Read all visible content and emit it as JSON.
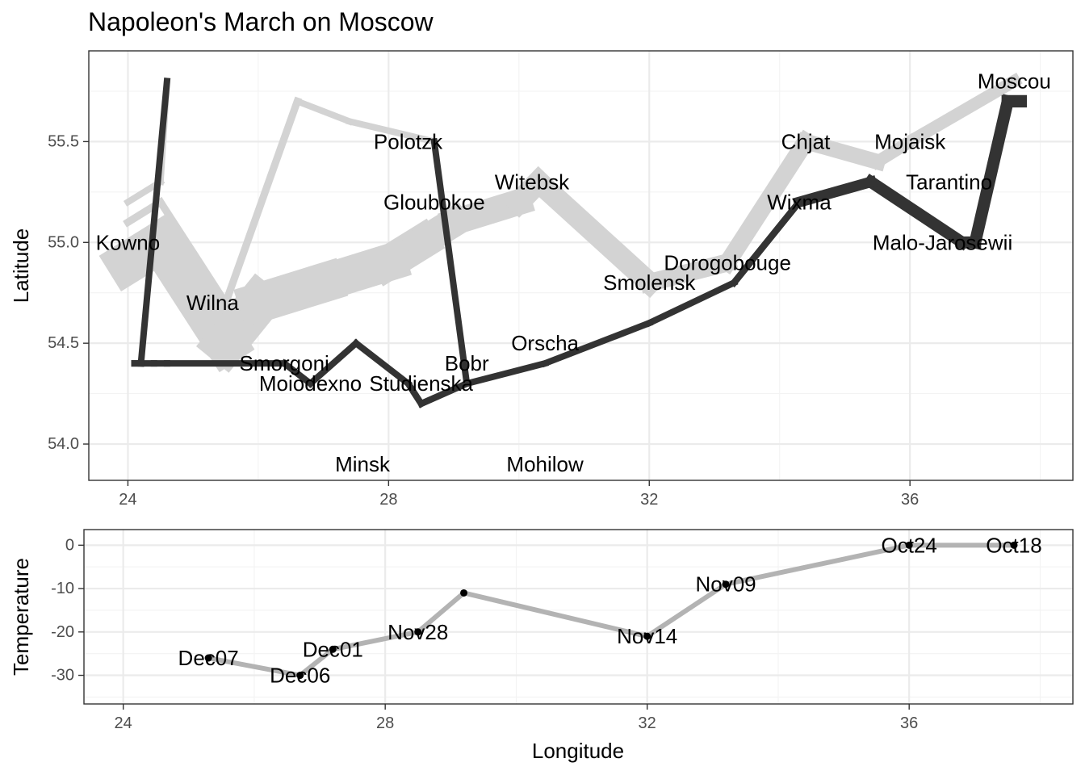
{
  "chart_data": [
    {
      "type": "path-map",
      "title": "Napoleon's March on Moscow",
      "xlabel": "",
      "ylabel": "Latitude",
      "xlim": [
        23.4,
        38.5
      ],
      "ylim": [
        53.82,
        55.95
      ],
      "xticks": [
        24,
        28,
        32,
        36
      ],
      "yticks": [
        54.0,
        54.5,
        55.0,
        55.5
      ],
      "ytick_labels": [
        "54.0",
        "54.5",
        "55.0",
        "55.5"
      ],
      "grid": true,
      "colors": {
        "advance": "#d3d3d3",
        "retreat": "#333333"
      },
      "series": [
        {
          "direction": "advance",
          "group": 1,
          "points": [
            {
              "lon": 24.0,
              "lat": 54.9,
              "survivors": 340000
            },
            {
              "lon": 24.5,
              "lat": 55.0,
              "survivors": 340000
            },
            {
              "lon": 25.5,
              "lat": 54.5,
              "survivors": 340000
            },
            {
              "lon": 26.0,
              "lat": 54.7,
              "survivors": 320000
            },
            {
              "lon": 27.0,
              "lat": 54.8,
              "survivors": 300000
            },
            {
              "lon": 28.0,
              "lat": 54.9,
              "survivors": 280000
            },
            {
              "lon": 28.5,
              "lat": 55.0,
              "survivors": 240000
            },
            {
              "lon": 29.0,
              "lat": 55.1,
              "survivors": 210000
            },
            {
              "lon": 30.0,
              "lat": 55.2,
              "survivors": 180000
            },
            {
              "lon": 30.3,
              "lat": 55.3,
              "survivors": 175000
            },
            {
              "lon": 32.0,
              "lat": 54.8,
              "survivors": 145000
            },
            {
              "lon": 33.2,
              "lat": 54.9,
              "survivors": 140000
            },
            {
              "lon": 34.4,
              "lat": 55.5,
              "survivors": 127100
            },
            {
              "lon": 35.5,
              "lat": 55.4,
              "survivors": 100000
            },
            {
              "lon": 36.0,
              "lat": 55.5,
              "survivors": 100000
            },
            {
              "lon": 37.6,
              "lat": 55.8,
              "survivors": 100000
            }
          ]
        },
        {
          "direction": "retreat",
          "group": 1,
          "points": [
            {
              "lon": 37.7,
              "lat": 55.7,
              "survivors": 100000
            },
            {
              "lon": 37.5,
              "lat": 55.7,
              "survivors": 98000
            },
            {
              "lon": 37.0,
              "lat": 55.0,
              "survivors": 97000
            },
            {
              "lon": 36.8,
              "lat": 55.0,
              "survivors": 96000
            },
            {
              "lon": 35.4,
              "lat": 55.3,
              "survivors": 87000
            },
            {
              "lon": 34.3,
              "lat": 55.2,
              "survivors": 55000
            },
            {
              "lon": 33.3,
              "lat": 54.8,
              "survivors": 37000
            },
            {
              "lon": 32.0,
              "lat": 54.6,
              "survivors": 24000
            },
            {
              "lon": 30.4,
              "lat": 54.4,
              "survivors": 20000
            },
            {
              "lon": 29.2,
              "lat": 54.3,
              "survivors": 20000
            },
            {
              "lon": 28.5,
              "lat": 54.2,
              "survivors": 20000
            },
            {
              "lon": 28.3,
              "lat": 54.3,
              "survivors": 20000
            },
            {
              "lon": 27.5,
              "lat": 54.5,
              "survivors": 20000
            },
            {
              "lon": 26.8,
              "lat": 54.3,
              "survivors": 12000
            },
            {
              "lon": 26.4,
              "lat": 54.4,
              "survivors": 14000
            },
            {
              "lon": 24.6,
              "lat": 54.4,
              "survivors": 8000
            },
            {
              "lon": 24.4,
              "lat": 54.4,
              "survivors": 4000
            },
            {
              "lon": 24.2,
              "lat": 54.4,
              "survivors": 4000
            },
            {
              "lon": 24.1,
              "lat": 54.4,
              "survivors": 4000
            }
          ]
        },
        {
          "direction": "advance",
          "group": 2,
          "points": [
            {
              "lon": 24.0,
              "lat": 55.1,
              "survivors": 60000
            },
            {
              "lon": 24.5,
              "lat": 55.2,
              "survivors": 60000
            },
            {
              "lon": 25.5,
              "lat": 54.7,
              "survivors": 60000
            },
            {
              "lon": 26.6,
              "lat": 55.7,
              "survivors": 40000
            },
            {
              "lon": 27.4,
              "lat": 55.6,
              "survivors": 33000
            }
          ]
        },
        {
          "direction": "advance",
          "group": 2,
          "points": [
            {
              "lon": 27.4,
              "lat": 55.6,
              "survivors": 33000
            },
            {
              "lon": 28.7,
              "lat": 55.5,
              "survivors": 33000
            }
          ]
        },
        {
          "direction": "retreat",
          "group": 2,
          "points": [
            {
              "lon": 28.7,
              "lat": 55.5,
              "survivors": 33000
            },
            {
              "lon": 29.2,
              "lat": 54.3,
              "survivors": 30000
            },
            {
              "lon": 28.5,
              "lat": 54.2,
              "survivors": 30000
            },
            {
              "lon": 28.3,
              "lat": 54.3,
              "survivors": 28000
            }
          ]
        },
        {
          "direction": "advance",
          "group": 3,
          "points": [
            {
              "lon": 24.0,
              "lat": 55.2,
              "survivors": 22000
            },
            {
              "lon": 24.5,
              "lat": 55.3,
              "survivors": 22000
            },
            {
              "lon": 24.6,
              "lat": 55.8,
              "survivors": 6000
            }
          ]
        },
        {
          "direction": "retreat",
          "group": 3,
          "points": [
            {
              "lon": 24.6,
              "lat": 55.8,
              "survivors": 6000
            },
            {
              "lon": 24.2,
              "lat": 54.4,
              "survivors": 6000
            },
            {
              "lon": 24.1,
              "lat": 54.4,
              "survivors": 6000
            }
          ]
        }
      ],
      "cities": [
        {
          "name": "Kowno",
          "lon": 24.0,
          "lat": 55.0
        },
        {
          "name": "Wilna",
          "lon": 25.3,
          "lat": 54.7
        },
        {
          "name": "Smorgoni",
          "lon": 26.4,
          "lat": 54.4
        },
        {
          "name": "Moiodexno",
          "lon": 26.8,
          "lat": 54.3
        },
        {
          "name": "Gloubokoe",
          "lon": 28.7,
          "lat": 55.2
        },
        {
          "name": "Minsk",
          "lon": 27.6,
          "lat": 53.9
        },
        {
          "name": "Studienska",
          "lon": 28.5,
          "lat": 54.3
        },
        {
          "name": "Polotzk",
          "lon": 28.3,
          "lat": 55.5
        },
        {
          "name": "Bobr",
          "lon": 29.2,
          "lat": 54.4
        },
        {
          "name": "Witebsk",
          "lon": 30.2,
          "lat": 55.3
        },
        {
          "name": "Orscha",
          "lon": 30.4,
          "lat": 54.5
        },
        {
          "name": "Mohilow",
          "lon": 30.4,
          "lat": 53.9
        },
        {
          "name": "Smolensk",
          "lon": 32.0,
          "lat": 54.8
        },
        {
          "name": "Dorogobouge",
          "lon": 33.2,
          "lat": 54.9
        },
        {
          "name": "Wixma",
          "lon": 34.3,
          "lat": 55.2
        },
        {
          "name": "Chjat",
          "lon": 34.4,
          "lat": 55.5
        },
        {
          "name": "Mojaisk",
          "lon": 36.0,
          "lat": 55.5
        },
        {
          "name": "Moscou",
          "lon": 37.6,
          "lat": 55.8
        },
        {
          "name": "Tarantino",
          "lon": 36.6,
          "lat": 55.3
        },
        {
          "name": "Malo-Jarosewii",
          "lon": 36.5,
          "lat": 55.0
        }
      ]
    },
    {
      "type": "line",
      "title": "",
      "xlabel": "Longitude",
      "ylabel": "Temperature",
      "xlim": [
        23.4,
        38.5
      ],
      "ylim": [
        -36.6,
        3.6
      ],
      "xticks": [
        24,
        28,
        32,
        36
      ],
      "yticks": [
        0,
        -10,
        -20,
        -30
      ],
      "ytick_labels": [
        "0",
        "-10",
        "-20",
        "-30"
      ],
      "grid": true,
      "colors": {
        "line": "#b3b3b3",
        "point": "#000000"
      },
      "points": [
        {
          "lon": 37.6,
          "temp": 0,
          "label": "Oct18"
        },
        {
          "lon": 36.0,
          "temp": 0,
          "label": "Oct24"
        },
        {
          "lon": 33.2,
          "temp": -9,
          "label": "Nov09"
        },
        {
          "lon": 32.0,
          "temp": -21,
          "label": "Nov14"
        },
        {
          "lon": 29.2,
          "temp": -11,
          "label": ""
        },
        {
          "lon": 28.5,
          "temp": -20,
          "label": "Nov28"
        },
        {
          "lon": 27.2,
          "temp": -24,
          "label": "Dec01"
        },
        {
          "lon": 26.7,
          "temp": -30,
          "label": "Dec06"
        },
        {
          "lon": 25.3,
          "temp": -26,
          "label": "Dec07"
        }
      ]
    }
  ]
}
